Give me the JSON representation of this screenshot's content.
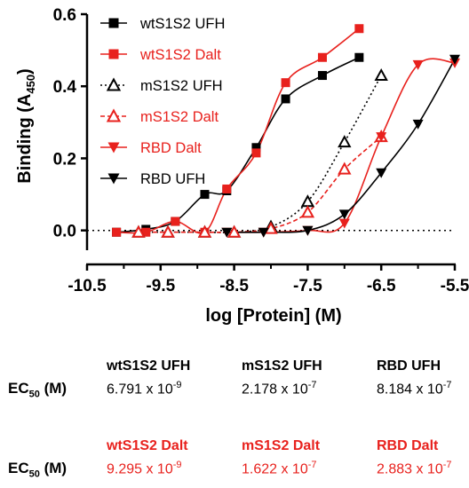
{
  "chart_data": {
    "type": "line",
    "xlabel": "log [Protein] (M)",
    "ylabel_main": "Binding (A",
    "ylabel_sub": "450",
    "ylabel_close": ")",
    "xlim": [
      -10.5,
      -5.5
    ],
    "ylim": [
      -0.05,
      0.6
    ],
    "xticks": [
      -10.5,
      -9.5,
      -8.5,
      -7.5,
      -6.5,
      -5.5
    ],
    "xtick_labels": [
      "-10.5",
      "-9.5",
      "-8.5",
      "-7.5",
      "-6.5",
      "-5.5"
    ],
    "yticks": [
      0.0,
      0.2,
      0.4,
      0.6
    ],
    "ytick_labels": [
      "0.0",
      "0.2",
      "0.4",
      "0.6"
    ],
    "grid": false,
    "legend_position": "top-left",
    "baseline_dotted_y": 0.0,
    "colors": {
      "black": "#000000",
      "red": "#e8211d"
    },
    "series": [
      {
        "name": "wtS1S2 UFH",
        "color": "#000000",
        "marker": "square-filled",
        "line": "solid",
        "x": [
          -10.1,
          -9.7,
          -9.3,
          -8.9,
          -8.6,
          -8.2,
          -7.8,
          -7.3,
          -6.8
        ],
        "y": [
          -0.005,
          0.003,
          0.025,
          0.1,
          0.11,
          0.23,
          0.365,
          0.43,
          0.48
        ]
      },
      {
        "name": "wtS1S2 Dalt",
        "color": "#e8211d",
        "marker": "square-filled",
        "line": "solid",
        "x": [
          -10.1,
          -9.7,
          -9.3,
          -8.9,
          -8.6,
          -8.2,
          -7.8,
          -7.3,
          -6.8
        ],
        "y": [
          -0.005,
          -0.005,
          0.025,
          -0.005,
          0.115,
          0.215,
          0.41,
          0.48,
          0.56
        ]
      },
      {
        "name": "mS1S2 UFH",
        "color": "#000000",
        "marker": "triangle-up-open",
        "line": "dotted",
        "x": [
          -9.8,
          -9.4,
          -8.9,
          -8.5,
          -8.0,
          -7.5,
          -7.0,
          -6.5
        ],
        "y": [
          -0.005,
          -0.005,
          -0.005,
          -0.005,
          0.01,
          0.08,
          0.245,
          0.43
        ]
      },
      {
        "name": "mS1S2 Dalt",
        "color": "#e8211d",
        "marker": "triangle-up-open",
        "line": "dashed",
        "x": [
          -9.8,
          -9.4,
          -8.9,
          -8.5,
          -8.0,
          -7.5,
          -7.0,
          -6.5
        ],
        "y": [
          -0.005,
          -0.005,
          -0.005,
          -0.005,
          0.005,
          0.05,
          0.17,
          0.26
        ]
      },
      {
        "name": "RBD Dalt",
        "color": "#e8211d",
        "marker": "triangle-down-filled",
        "line": "solid",
        "x": [
          -8.6,
          -8.1,
          -7.5,
          -7.0,
          -6.5,
          -6.0,
          -5.5
        ],
        "y": [
          -0.005,
          -0.005,
          0.0,
          0.02,
          0.26,
          0.46,
          0.465
        ]
      },
      {
        "name": "RBD UFH",
        "color": "#000000",
        "marker": "triangle-down-filled",
        "line": "solid",
        "x": [
          -8.6,
          -8.1,
          -7.5,
          -7.0,
          -6.5,
          -6.0,
          -5.5
        ],
        "y": [
          -0.005,
          -0.005,
          0.0,
          0.045,
          0.16,
          0.295,
          0.475
        ]
      }
    ]
  },
  "ec50": {
    "label_main": "EC",
    "label_sub": "50",
    "label_unit": " (M)",
    "row1": {
      "names": [
        "wtS1S2 UFH",
        "mS1S2 UFH",
        "RBD UFH"
      ],
      "mantissas": [
        "6.791 x 10",
        "2.178 x 10",
        "8.184 x 10"
      ],
      "exponents": [
        "-9",
        "-7",
        "-7"
      ]
    },
    "row2": {
      "names": [
        "wtS1S2 Dalt",
        "mS1S2 Dalt",
        "RBD Dalt"
      ],
      "mantissas": [
        "9.295 x 10",
        "1.622 x 10",
        "2.883 x 10"
      ],
      "exponents": [
        "-9",
        "-7",
        "-7"
      ]
    }
  }
}
